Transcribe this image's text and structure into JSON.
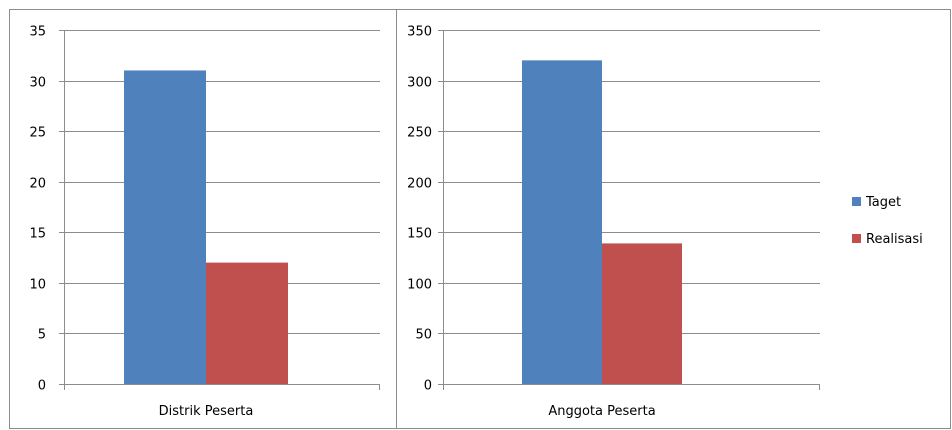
{
  "chart_data": [
    {
      "type": "bar",
      "categories": [
        "Distrik Peserta"
      ],
      "series": [
        {
          "name": "Taget",
          "values": [
            31
          ]
        },
        {
          "name": "Realisasi",
          "values": [
            12
          ]
        }
      ],
      "ylim": [
        0,
        35
      ],
      "yticks": [
        0,
        5,
        10,
        15,
        20,
        25,
        30,
        35
      ],
      "grid": true
    },
    {
      "type": "bar",
      "categories": [
        "Anggota Peserta"
      ],
      "series": [
        {
          "name": "Taget",
          "values": [
            320
          ]
        },
        {
          "name": "Realisasi",
          "values": [
            139
          ]
        }
      ],
      "ylim": [
        0,
        350
      ],
      "yticks": [
        0,
        50,
        100,
        150,
        200,
        250,
        300,
        350
      ],
      "grid": true
    }
  ],
  "legend": {
    "placement": "right",
    "items": [
      {
        "label": "Taget",
        "color": "#4f81bd"
      },
      {
        "label": "Realisasi",
        "color": "#c0504d"
      }
    ]
  }
}
